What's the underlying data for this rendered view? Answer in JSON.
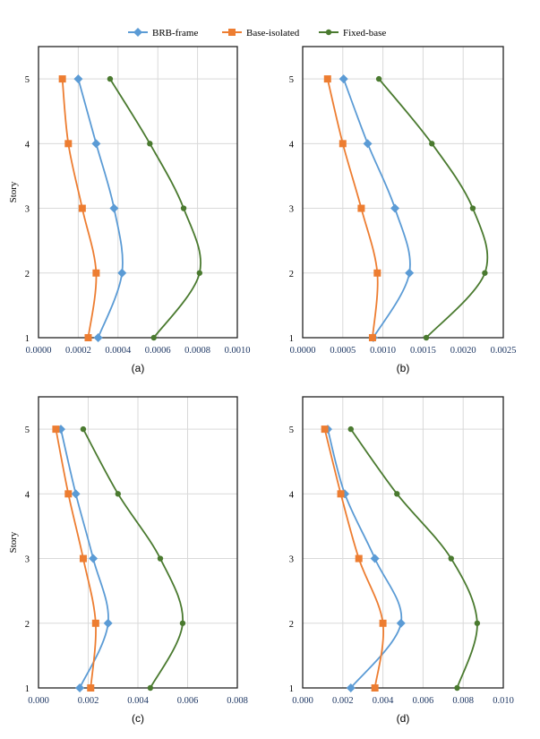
{
  "colors": {
    "BRB-frame": "#5b9bd5",
    "Base-isolated": "#ed7d31",
    "Fixed-base": "#4a7a2f"
  },
  "legend": [
    "BRB-frame",
    "Base-isolated",
    "Fixed-base"
  ],
  "chart_data": [
    {
      "type": "line",
      "label": "(a)",
      "ylabel": "Story",
      "yticks": [
        "1",
        "2",
        "3",
        "4",
        "5"
      ],
      "ylim": [
        1,
        5.5
      ],
      "xlim": [
        0,
        0.001
      ],
      "xticks": [
        "0.0000",
        "0.0002",
        "0.0004",
        "0.0006",
        "0.0008",
        "0.0010"
      ],
      "grid": true,
      "legend": "top",
      "series": [
        {
          "name": "BRB-frame",
          "x": [
            0.0003,
            0.00042,
            0.00038,
            0.00029,
            0.0002
          ],
          "y": [
            1,
            2,
            3,
            4,
            5
          ]
        },
        {
          "name": "Base-isolated",
          "x": [
            0.00025,
            0.00029,
            0.00022,
            0.00015,
            0.00012
          ],
          "y": [
            1,
            2,
            3,
            4,
            5
          ]
        },
        {
          "name": "Fixed-base",
          "x": [
            0.00058,
            0.00081,
            0.00073,
            0.00056,
            0.00036
          ],
          "y": [
            1,
            2,
            3,
            4,
            5
          ]
        }
      ]
    },
    {
      "type": "line",
      "label": "(b)",
      "ylabel": "",
      "yticks": [
        "1",
        "2",
        "3",
        "4",
        "5"
      ],
      "ylim": [
        1,
        5.5
      ],
      "xlim": [
        0,
        0.0025
      ],
      "xticks": [
        "0.0000",
        "0.0005",
        "0.0010",
        "0.0015",
        "0.0020",
        "0.0025"
      ],
      "grid": true,
      "series": [
        {
          "name": "BRB-frame",
          "x": [
            0.00088,
            0.00133,
            0.00115,
            0.00081,
            0.00051
          ],
          "y": [
            1,
            2,
            3,
            4,
            5
          ]
        },
        {
          "name": "Base-isolated",
          "x": [
            0.00087,
            0.00093,
            0.00073,
            0.0005,
            0.00031
          ],
          "y": [
            1,
            2,
            3,
            4,
            5
          ]
        },
        {
          "name": "Fixed-base",
          "x": [
            0.00154,
            0.00227,
            0.00212,
            0.00161,
            0.00095
          ],
          "y": [
            1,
            2,
            3,
            4,
            5
          ]
        }
      ]
    },
    {
      "type": "line",
      "label": "(c)",
      "ylabel": "Story",
      "yticks": [
        "1",
        "2",
        "3",
        "4",
        "5"
      ],
      "ylim": [
        1,
        5.5
      ],
      "xlim": [
        0,
        0.008
      ],
      "xticks": [
        "0.000",
        "0.002",
        "0.004",
        "0.006",
        "0.008"
      ],
      "grid": true,
      "series": [
        {
          "name": "BRB-frame",
          "x": [
            0.00166,
            0.0028,
            0.0022,
            0.0015,
            0.0009
          ],
          "y": [
            1,
            2,
            3,
            4,
            5
          ]
        },
        {
          "name": "Base-isolated",
          "x": [
            0.0021,
            0.0023,
            0.0018,
            0.0012,
            0.0007
          ],
          "y": [
            1,
            2,
            3,
            4,
            5
          ]
        },
        {
          "name": "Fixed-base",
          "x": [
            0.0045,
            0.0058,
            0.0049,
            0.0032,
            0.0018
          ],
          "y": [
            1,
            2,
            3,
            4,
            5
          ]
        }
      ]
    },
    {
      "type": "line",
      "label": "(d)",
      "ylabel": "",
      "yticks": [
        "1",
        "2",
        "3",
        "4",
        "5"
      ],
      "ylim": [
        1,
        5.5
      ],
      "xlim": [
        0,
        0.01
      ],
      "xticks": [
        "0.000",
        "0.002",
        "0.004",
        "0.006",
        "0.008",
        "0.010"
      ],
      "grid": true,
      "series": [
        {
          "name": "BRB-frame",
          "x": [
            0.0024,
            0.0049,
            0.0036,
            0.0021,
            0.00125
          ],
          "y": [
            1,
            2,
            3,
            4,
            5
          ]
        },
        {
          "name": "Base-isolated",
          "x": [
            0.0036,
            0.004,
            0.0028,
            0.0019,
            0.0011
          ],
          "y": [
            1,
            2,
            3,
            4,
            5
          ]
        },
        {
          "name": "Fixed-base",
          "x": [
            0.0077,
            0.0087,
            0.0074,
            0.0047,
            0.0024
          ],
          "y": [
            1,
            2,
            3,
            4,
            5
          ]
        }
      ]
    }
  ]
}
